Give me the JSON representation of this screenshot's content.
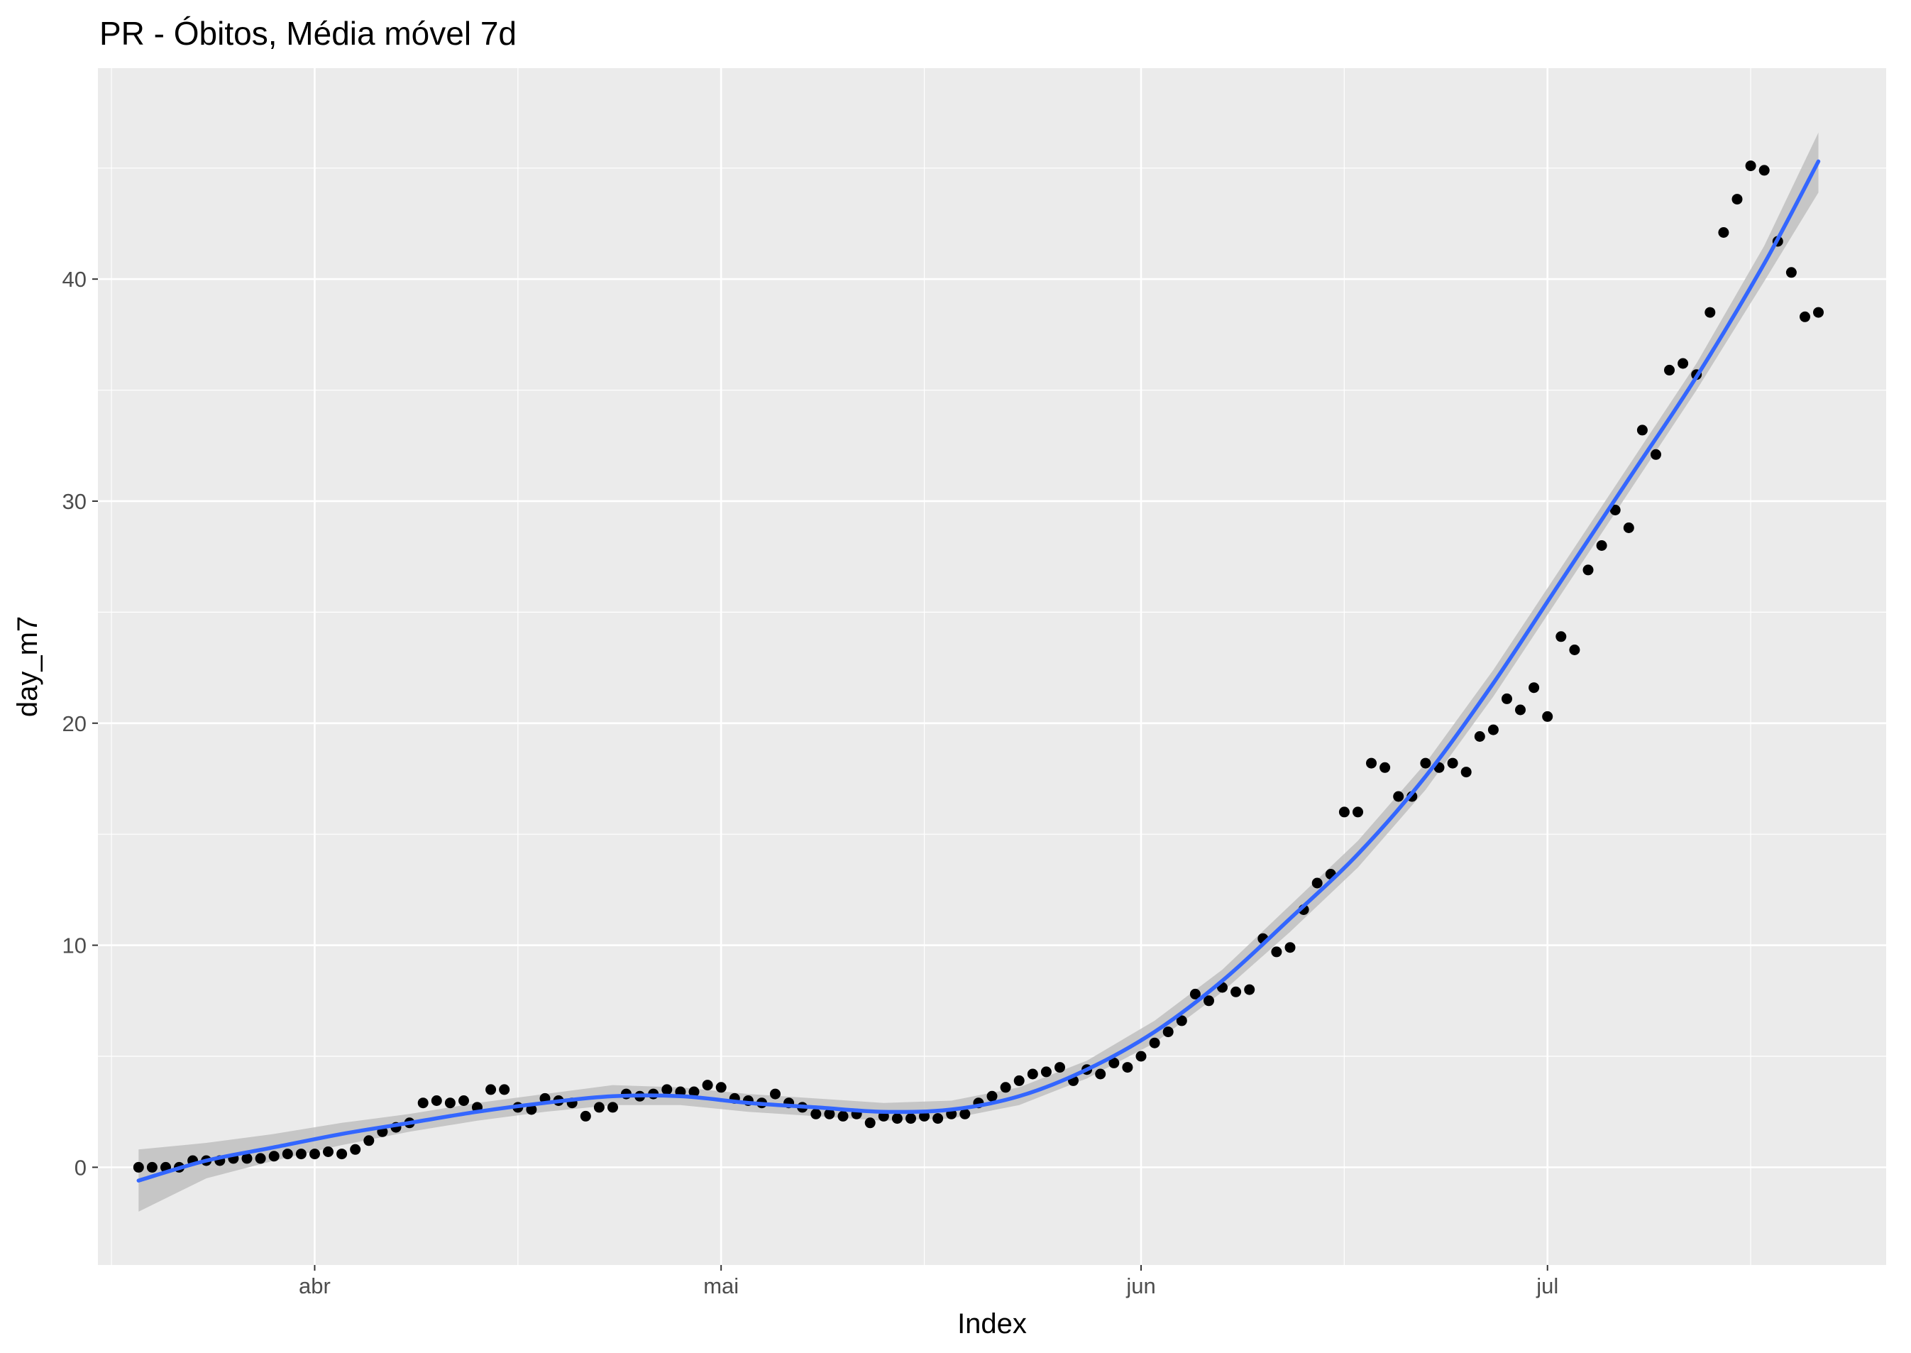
{
  "chart_data": {
    "type": "scatter",
    "title": "PR - Óbitos, Média móvel 7d",
    "xlabel": "Index",
    "ylabel": "day_m7",
    "x_type": "date",
    "xlim": [
      "2020-03-16",
      "2020-07-26"
    ],
    "ylim": [
      -4.4,
      49.5
    ],
    "x_ticks": [
      {
        "date": "2020-04-01",
        "label": "abr"
      },
      {
        "date": "2020-05-01",
        "label": "mai"
      },
      {
        "date": "2020-06-01",
        "label": "jun"
      },
      {
        "date": "2020-07-01",
        "label": "jul"
      }
    ],
    "y_ticks": [
      0,
      10,
      20,
      30,
      40
    ],
    "grid": true,
    "colors": {
      "panel": "#ebebeb",
      "grid": "#ffffff",
      "points": "#000000",
      "smooth_line": "#3366ff",
      "confidence_band": "#bdbdbd"
    },
    "series": [
      {
        "kind": "points",
        "points": [
          [
            "2020-03-19",
            0
          ],
          [
            "2020-03-20",
            0
          ],
          [
            "2020-03-21",
            0
          ],
          [
            "2020-03-22",
            0
          ],
          [
            "2020-03-23",
            0.3
          ],
          [
            "2020-03-24",
            0.3
          ],
          [
            "2020-03-25",
            0.3
          ],
          [
            "2020-03-26",
            0.4
          ],
          [
            "2020-03-27",
            0.4
          ],
          [
            "2020-03-28",
            0.4
          ],
          [
            "2020-03-29",
            0.5
          ],
          [
            "2020-03-30",
            0.6
          ],
          [
            "2020-03-31",
            0.6
          ],
          [
            "2020-04-01",
            0.6
          ],
          [
            "2020-04-02",
            0.7
          ],
          [
            "2020-04-03",
            0.6
          ],
          [
            "2020-04-04",
            0.8
          ],
          [
            "2020-04-05",
            1.2
          ],
          [
            "2020-04-06",
            1.6
          ],
          [
            "2020-04-07",
            1.8
          ],
          [
            "2020-04-08",
            2.0
          ],
          [
            "2020-04-09",
            2.9
          ],
          [
            "2020-04-10",
            3.0
          ],
          [
            "2020-04-11",
            2.9
          ],
          [
            "2020-04-12",
            3.0
          ],
          [
            "2020-04-13",
            2.7
          ],
          [
            "2020-04-14",
            3.5
          ],
          [
            "2020-04-15",
            3.5
          ],
          [
            "2020-04-16",
            2.7
          ],
          [
            "2020-04-17",
            2.6
          ],
          [
            "2020-04-18",
            3.1
          ],
          [
            "2020-04-19",
            3.0
          ],
          [
            "2020-04-20",
            2.9
          ],
          [
            "2020-04-21",
            2.3
          ],
          [
            "2020-04-22",
            2.7
          ],
          [
            "2020-04-23",
            2.7
          ],
          [
            "2020-04-24",
            3.3
          ],
          [
            "2020-04-25",
            3.2
          ],
          [
            "2020-04-26",
            3.3
          ],
          [
            "2020-04-27",
            3.5
          ],
          [
            "2020-04-28",
            3.4
          ],
          [
            "2020-04-29",
            3.4
          ],
          [
            "2020-04-30",
            3.7
          ],
          [
            "2020-05-01",
            3.6
          ],
          [
            "2020-05-02",
            3.1
          ],
          [
            "2020-05-03",
            3.0
          ],
          [
            "2020-05-04",
            2.9
          ],
          [
            "2020-05-05",
            3.3
          ],
          [
            "2020-05-06",
            2.9
          ],
          [
            "2020-05-07",
            2.7
          ],
          [
            "2020-05-08",
            2.4
          ],
          [
            "2020-05-09",
            2.4
          ],
          [
            "2020-05-10",
            2.3
          ],
          [
            "2020-05-11",
            2.4
          ],
          [
            "2020-05-12",
            2.0
          ],
          [
            "2020-05-13",
            2.3
          ],
          [
            "2020-05-14",
            2.2
          ],
          [
            "2020-05-15",
            2.2
          ],
          [
            "2020-05-16",
            2.3
          ],
          [
            "2020-05-17",
            2.2
          ],
          [
            "2020-05-18",
            2.4
          ],
          [
            "2020-05-19",
            2.4
          ],
          [
            "2020-05-20",
            2.9
          ],
          [
            "2020-05-21",
            3.2
          ],
          [
            "2020-05-22",
            3.6
          ],
          [
            "2020-05-23",
            3.9
          ],
          [
            "2020-05-24",
            4.2
          ],
          [
            "2020-05-25",
            4.3
          ],
          [
            "2020-05-26",
            4.5
          ],
          [
            "2020-05-27",
            3.9
          ],
          [
            "2020-05-28",
            4.4
          ],
          [
            "2020-05-29",
            4.2
          ],
          [
            "2020-05-30",
            4.7
          ],
          [
            "2020-05-31",
            4.5
          ],
          [
            "2020-06-01",
            5.0
          ],
          [
            "2020-06-02",
            5.6
          ],
          [
            "2020-06-03",
            6.1
          ],
          [
            "2020-06-04",
            6.6
          ],
          [
            "2020-06-05",
            7.8
          ],
          [
            "2020-06-06",
            7.5
          ],
          [
            "2020-06-07",
            8.1
          ],
          [
            "2020-06-08",
            7.9
          ],
          [
            "2020-06-09",
            8.0
          ],
          [
            "2020-06-10",
            10.3
          ],
          [
            "2020-06-11",
            9.7
          ],
          [
            "2020-06-12",
            9.9
          ],
          [
            "2020-06-13",
            11.6
          ],
          [
            "2020-06-14",
            12.8
          ],
          [
            "2020-06-15",
            13.2
          ],
          [
            "2020-06-16",
            16.0
          ],
          [
            "2020-06-17",
            16.0
          ],
          [
            "2020-06-18",
            18.2
          ],
          [
            "2020-06-19",
            18.0
          ],
          [
            "2020-06-20",
            16.7
          ],
          [
            "2020-06-21",
            16.7
          ],
          [
            "2020-06-22",
            18.2
          ],
          [
            "2020-06-23",
            18.0
          ],
          [
            "2020-06-24",
            18.2
          ],
          [
            "2020-06-25",
            17.8
          ],
          [
            "2020-06-26",
            19.4
          ],
          [
            "2020-06-27",
            19.7
          ],
          [
            "2020-06-28",
            21.1
          ],
          [
            "2020-06-29",
            20.6
          ],
          [
            "2020-06-30",
            21.6
          ],
          [
            "2020-07-01",
            20.3
          ],
          [
            "2020-07-02",
            23.9
          ],
          [
            "2020-07-03",
            23.3
          ],
          [
            "2020-07-04",
            26.9
          ],
          [
            "2020-07-05",
            28.0
          ],
          [
            "2020-07-06",
            29.6
          ],
          [
            "2020-07-07",
            28.8
          ],
          [
            "2020-07-08",
            33.2
          ],
          [
            "2020-07-09",
            32.1
          ],
          [
            "2020-07-10",
            35.9
          ],
          [
            "2020-07-11",
            36.2
          ],
          [
            "2020-07-12",
            35.7
          ],
          [
            "2020-07-13",
            38.5
          ],
          [
            "2020-07-14",
            42.1
          ],
          [
            "2020-07-15",
            43.6
          ],
          [
            "2020-07-16",
            45.1
          ],
          [
            "2020-07-17",
            44.9
          ],
          [
            "2020-07-18",
            41.7
          ],
          [
            "2020-07-19",
            40.3
          ],
          [
            "2020-07-20",
            38.3
          ],
          [
            "2020-07-21",
            38.5
          ]
        ]
      },
      {
        "kind": "smooth",
        "points": [
          [
            "2020-03-19",
            -0.6,
            -2.0,
            0.8
          ],
          [
            "2020-03-24",
            0.3,
            -0.5,
            1.1
          ],
          [
            "2020-03-29",
            0.9,
            0.3,
            1.5
          ],
          [
            "2020-04-03",
            1.5,
            1.0,
            2.0
          ],
          [
            "2020-04-08",
            2.0,
            1.6,
            2.4
          ],
          [
            "2020-04-13",
            2.5,
            2.1,
            2.9
          ],
          [
            "2020-04-18",
            2.9,
            2.5,
            3.3
          ],
          [
            "2020-04-23",
            3.2,
            2.8,
            3.7
          ],
          [
            "2020-04-28",
            3.2,
            2.8,
            3.6
          ],
          [
            "2020-05-03",
            2.9,
            2.5,
            3.3
          ],
          [
            "2020-05-08",
            2.7,
            2.3,
            3.1
          ],
          [
            "2020-05-13",
            2.5,
            2.1,
            2.9
          ],
          [
            "2020-05-18",
            2.6,
            2.2,
            3.0
          ],
          [
            "2020-05-23",
            3.2,
            2.8,
            3.6
          ],
          [
            "2020-05-28",
            4.4,
            4.0,
            4.8
          ],
          [
            "2020-06-02",
            6.1,
            5.6,
            6.6
          ],
          [
            "2020-06-07",
            8.4,
            7.9,
            8.9
          ],
          [
            "2020-06-12",
            11.2,
            10.6,
            11.8
          ],
          [
            "2020-06-17",
            14.1,
            13.5,
            14.7
          ],
          [
            "2020-06-22",
            17.6,
            17.0,
            18.2
          ],
          [
            "2020-06-27",
            21.8,
            21.2,
            22.4
          ],
          [
            "2020-07-02",
            26.4,
            25.8,
            27.0
          ],
          [
            "2020-07-07",
            31.0,
            30.4,
            31.6
          ],
          [
            "2020-07-12",
            35.6,
            35.0,
            36.2
          ],
          [
            "2020-07-17",
            40.7,
            39.9,
            41.5
          ],
          [
            "2020-07-21",
            45.3,
            43.9,
            46.6
          ]
        ]
      }
    ]
  }
}
